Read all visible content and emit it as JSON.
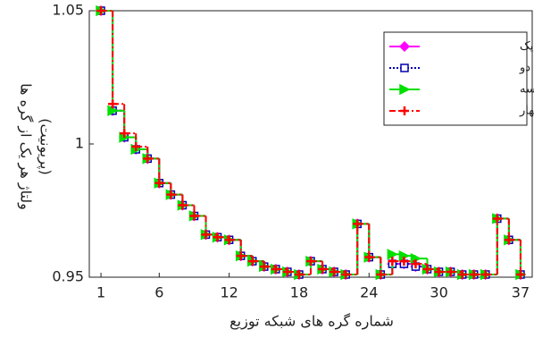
{
  "chart_data": {
    "type": "stairs",
    "xlabel": "شماره گره های شبکه توزیع",
    "ylabel": [
      "ولتاژ هر یک از گره ها",
      "(پریونیت)"
    ],
    "x": [
      1,
      2,
      3,
      4,
      5,
      6,
      7,
      8,
      9,
      10,
      11,
      12,
      13,
      14,
      15,
      16,
      17,
      18,
      19,
      20,
      21,
      22,
      23,
      24,
      25,
      26,
      27,
      28,
      29,
      30,
      31,
      32,
      33,
      34,
      35,
      36,
      37
    ],
    "xlim": [
      0,
      38
    ],
    "xticks": [
      1,
      6,
      12,
      18,
      24,
      30,
      37
    ],
    "ylim": [
      0.95,
      1.05
    ],
    "yticks": [
      0.95,
      1,
      1.05
    ],
    "legend": "top-right",
    "series": [
      {
        "name": "مورد یک",
        "color": "#ff00ff",
        "marker": "diamond",
        "dash": "solid",
        "values": [
          1.05,
          1.0125,
          1.0025,
          0.998,
          0.9945,
          0.9853,
          0.981,
          0.977,
          0.973,
          0.966,
          0.965,
          0.964,
          0.958,
          0.956,
          0.954,
          0.953,
          0.952,
          0.951,
          0.956,
          0.953,
          0.952,
          0.951,
          0.97,
          0.9575,
          0.951,
          0.955,
          0.955,
          0.954,
          0.953,
          0.952,
          0.952,
          0.951,
          0.951,
          0.951,
          0.972,
          0.964,
          0.951
        ]
      },
      {
        "name": "مورد دو",
        "color": "#0000b0",
        "marker": "square",
        "dash": "dotted",
        "values": [
          1.05,
          1.0125,
          1.0025,
          0.998,
          0.9945,
          0.9853,
          0.981,
          0.977,
          0.973,
          0.966,
          0.965,
          0.964,
          0.958,
          0.956,
          0.954,
          0.953,
          0.952,
          0.951,
          0.956,
          0.953,
          0.952,
          0.951,
          0.97,
          0.9575,
          0.951,
          0.955,
          0.955,
          0.954,
          0.953,
          0.952,
          0.952,
          0.951,
          0.951,
          0.951,
          0.972,
          0.964,
          0.951
        ]
      },
      {
        "name": "مورد سه",
        "color": "#00e000",
        "marker": "triangle",
        "dash": "solid",
        "values": [
          1.05,
          1.0125,
          1.0025,
          0.998,
          0.9945,
          0.9853,
          0.981,
          0.977,
          0.973,
          0.966,
          0.965,
          0.964,
          0.958,
          0.956,
          0.954,
          0.953,
          0.952,
          0.951,
          0.956,
          0.953,
          0.952,
          0.951,
          0.97,
          0.9575,
          0.951,
          0.9586,
          0.958,
          0.957,
          0.953,
          0.952,
          0.952,
          0.951,
          0.951,
          0.951,
          0.972,
          0.964,
          0.951
        ]
      },
      {
        "name": "مورد چهار",
        "color": "#ff0000",
        "marker": "plus",
        "dash": "dashdot",
        "values": [
          1.05,
          1.015,
          1.004,
          0.999,
          0.9945,
          0.9853,
          0.981,
          0.977,
          0.973,
          0.966,
          0.965,
          0.964,
          0.958,
          0.956,
          0.954,
          0.953,
          0.952,
          0.951,
          0.956,
          0.953,
          0.952,
          0.951,
          0.97,
          0.9575,
          0.951,
          0.956,
          0.956,
          0.955,
          0.953,
          0.952,
          0.952,
          0.951,
          0.951,
          0.951,
          0.972,
          0.964,
          0.951
        ]
      }
    ]
  }
}
